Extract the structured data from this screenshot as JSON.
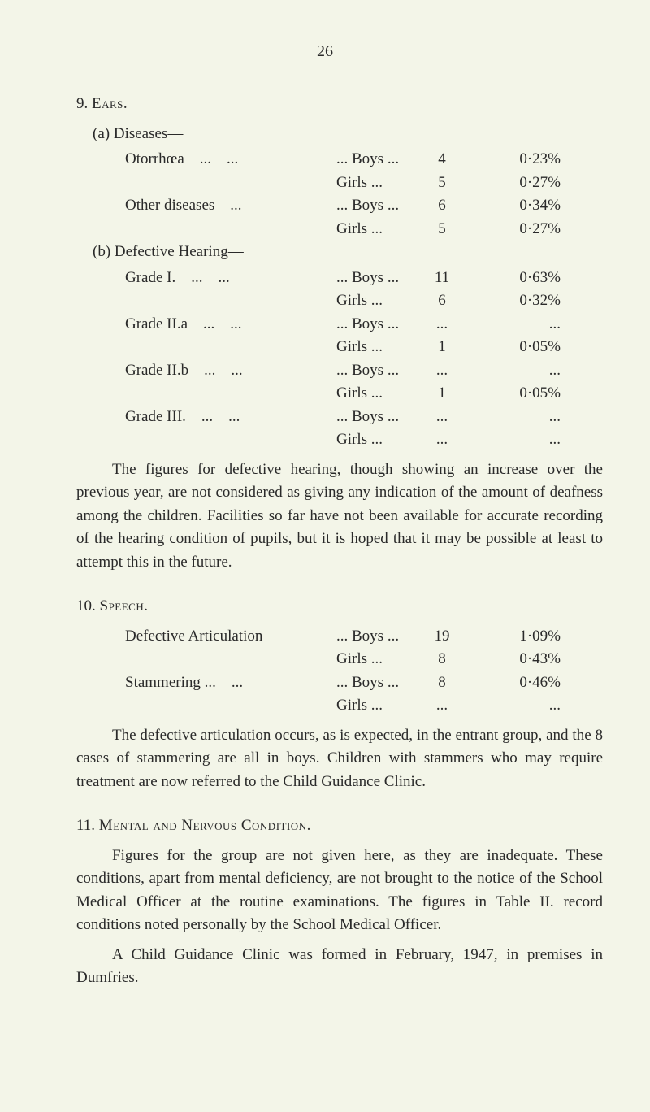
{
  "page_number": "26",
  "sections": [
    {
      "number": "9.",
      "title": "Ears.",
      "subsections": [
        {
          "label": "(a)",
          "title": "Diseases—",
          "rows": [
            {
              "name": "Otorrhœa",
              "ell1": "...",
              "ell2": "...",
              "ge": "... Boys ...",
              "count": "4",
              "pct": "0·23%"
            },
            {
              "name": "",
              "ell1": "",
              "ell2": "",
              "ge": "Girls ...",
              "count": "5",
              "pct": "0·27%"
            },
            {
              "name": "Other diseases",
              "ell1": "",
              "ell2": "...",
              "ge": "... Boys ...",
              "count": "6",
              "pct": "0·34%"
            },
            {
              "name": "",
              "ell1": "",
              "ell2": "",
              "ge": "Girls ...",
              "count": "5",
              "pct": "0·27%"
            }
          ]
        },
        {
          "label": "(b)",
          "title": "Defective Hearing—",
          "rows": [
            {
              "name": "Grade I.",
              "ell1": "...",
              "ell2": "...",
              "ge": "... Boys ...",
              "count": "11",
              "pct": "0·63%"
            },
            {
              "name": "",
              "ell1": "",
              "ell2": "",
              "ge": "Girls ...",
              "count": "6",
              "pct": "0·32%"
            },
            {
              "name": "Grade II.a",
              "ell1": "...",
              "ell2": "...",
              "ge": "... Boys ...",
              "count": "...",
              "pct": "..."
            },
            {
              "name": "",
              "ell1": "",
              "ell2": "",
              "ge": "Girls ...",
              "count": "1",
              "pct": "0·05%"
            },
            {
              "name": "Grade II.b",
              "ell1": "...",
              "ell2": "...",
              "ge": "... Boys ...",
              "count": "...",
              "pct": "..."
            },
            {
              "name": "",
              "ell1": "",
              "ell2": "",
              "ge": "Girls ...",
              "count": "1",
              "pct": "0·05%"
            },
            {
              "name": "Grade III.",
              "ell1": "...",
              "ell2": "...",
              "ge": "... Boys ...",
              "count": "...",
              "pct": "..."
            },
            {
              "name": "",
              "ell1": "",
              "ell2": "",
              "ge": "Girls ...",
              "count": "...",
              "pct": "..."
            }
          ]
        }
      ],
      "paragraph": "The figures for defective hearing, though showing an increase over the previous year, are not considered as giving any indication of the amount of deafness among the children. Facilities so far have not been available for accurate recording of the hearing condition of pupils, but it is hoped that it may be possible at least to attempt this in the future."
    },
    {
      "number": "10.",
      "title": "Speech.",
      "rows": [
        {
          "name": "Defective Articulation",
          "ell2": "",
          "ge": "... Boys ...",
          "count": "19",
          "pct": "1·09%"
        },
        {
          "name": "",
          "ell2": "",
          "ge": "Girls ...",
          "count": "8",
          "pct": "0·43%"
        },
        {
          "name": "Stammering ...",
          "ell2": "...",
          "ge": "... Boys ...",
          "count": "8",
          "pct": "0·46%"
        },
        {
          "name": "",
          "ell2": "",
          "ge": "Girls ...",
          "count": "...",
          "pct": "..."
        }
      ],
      "paragraph": "The defective articulation occurs, as is expected, in the entrant group, and the 8 cases of stammering are all in boys. Children with stammers who may require treatment are now referred to the Child Guidance Clinic."
    },
    {
      "number": "11.",
      "title": "Mental and Nervous Condition.",
      "paragraph": "Figures for the group are not given here, as they are inadequate. These conditions, apart from mental deficiency, are not brought to the notice of the School Medical Officer at the routine examinations. The figures in Table II. record conditions noted personally by the School Medical Officer.",
      "paragraph2": "A Child Guidance Clinic was formed in February, 1947, in premises in Dumfries."
    }
  ]
}
